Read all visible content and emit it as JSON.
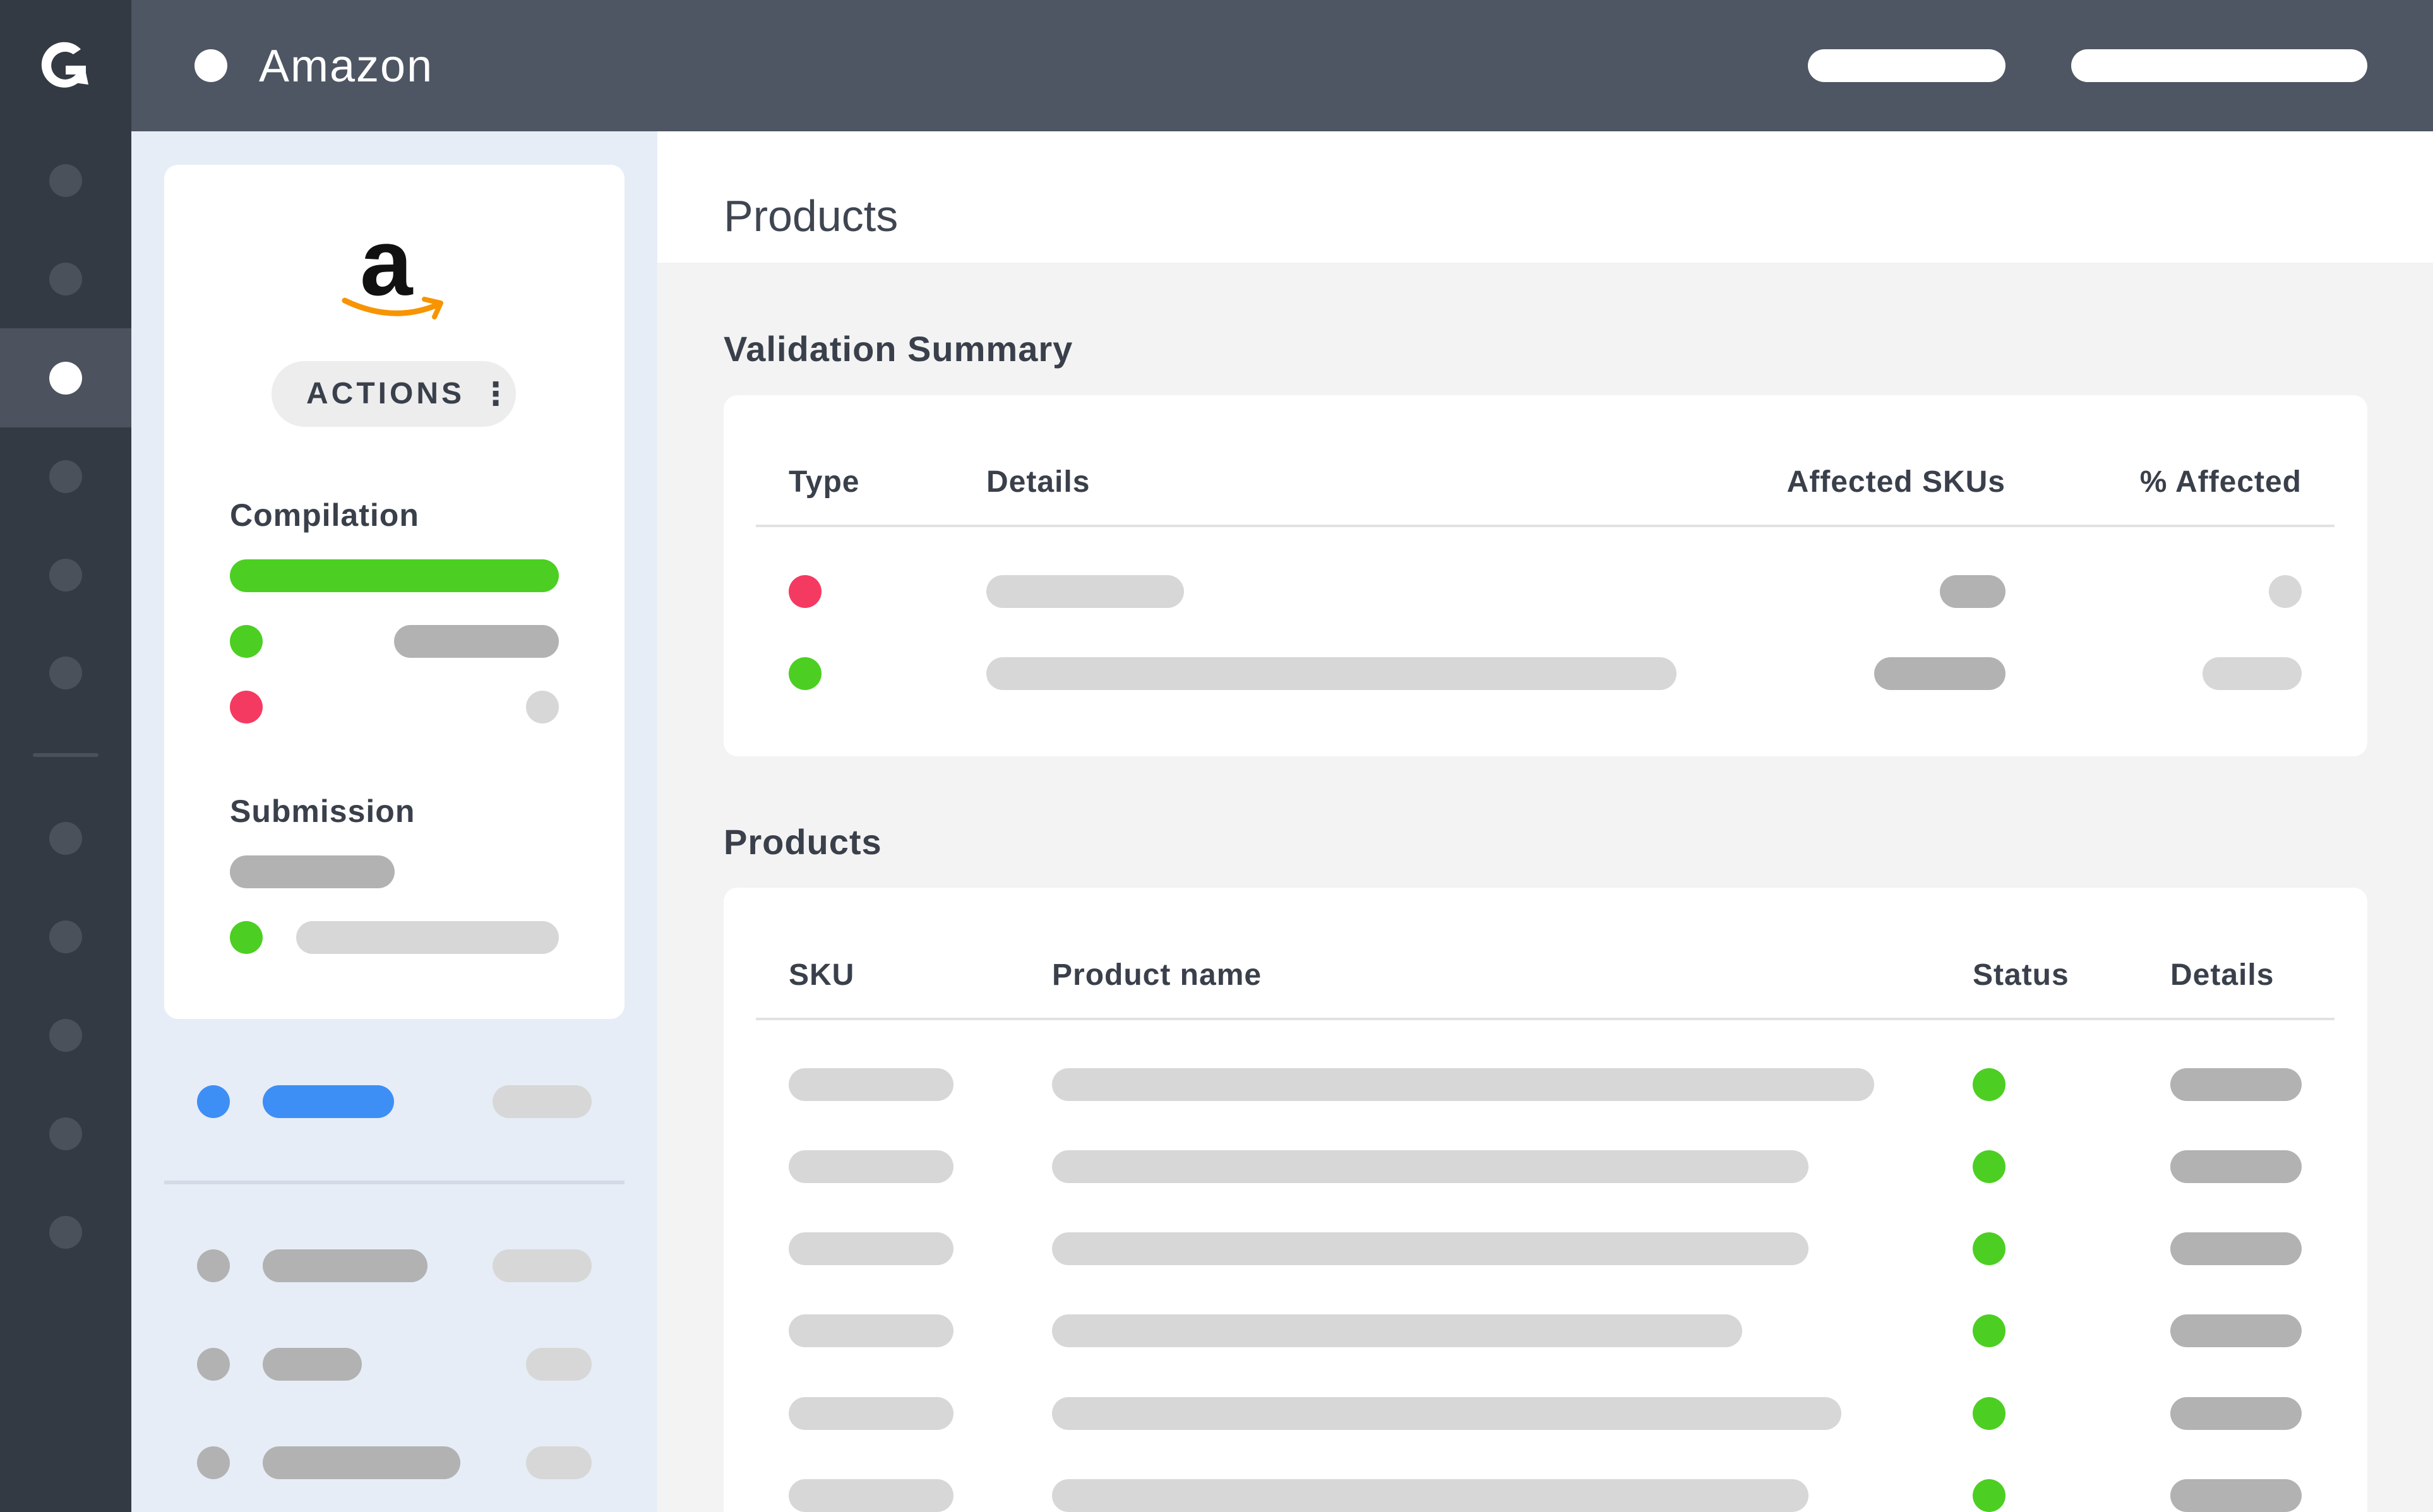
{
  "header": {
    "title": "Amazon"
  },
  "rail": {
    "logo_icon": "g-logo-icon",
    "active_index": 2
  },
  "store_card": {
    "logo_text": "a",
    "actions_label": "ACTIONS",
    "actions_icon": "kebab-menu-icon",
    "compilation_label": "Compilation",
    "compilation_progress": 1.0,
    "submission_label": "Submission"
  },
  "main": {
    "page_title": "Products",
    "validation": {
      "heading": "Validation Summary",
      "columns": [
        "Type",
        "Details",
        "Affected SKUs",
        "% Affected"
      ],
      "row_status": [
        "error",
        "ok"
      ]
    },
    "products": {
      "heading": "Products",
      "columns": [
        "SKU",
        "Product name",
        "Status",
        "Details"
      ],
      "row_status": [
        "ok",
        "ok",
        "ok",
        "ok",
        "ok",
        "ok"
      ]
    }
  },
  "colors": {
    "rail": "#343a43",
    "header": "#4e5563",
    "panel_bg": "#e6edf7",
    "ok": "#4ccf22",
    "error": "#f53a62",
    "accent": "#3d8ff5",
    "amazon_orange": "#f79400"
  }
}
